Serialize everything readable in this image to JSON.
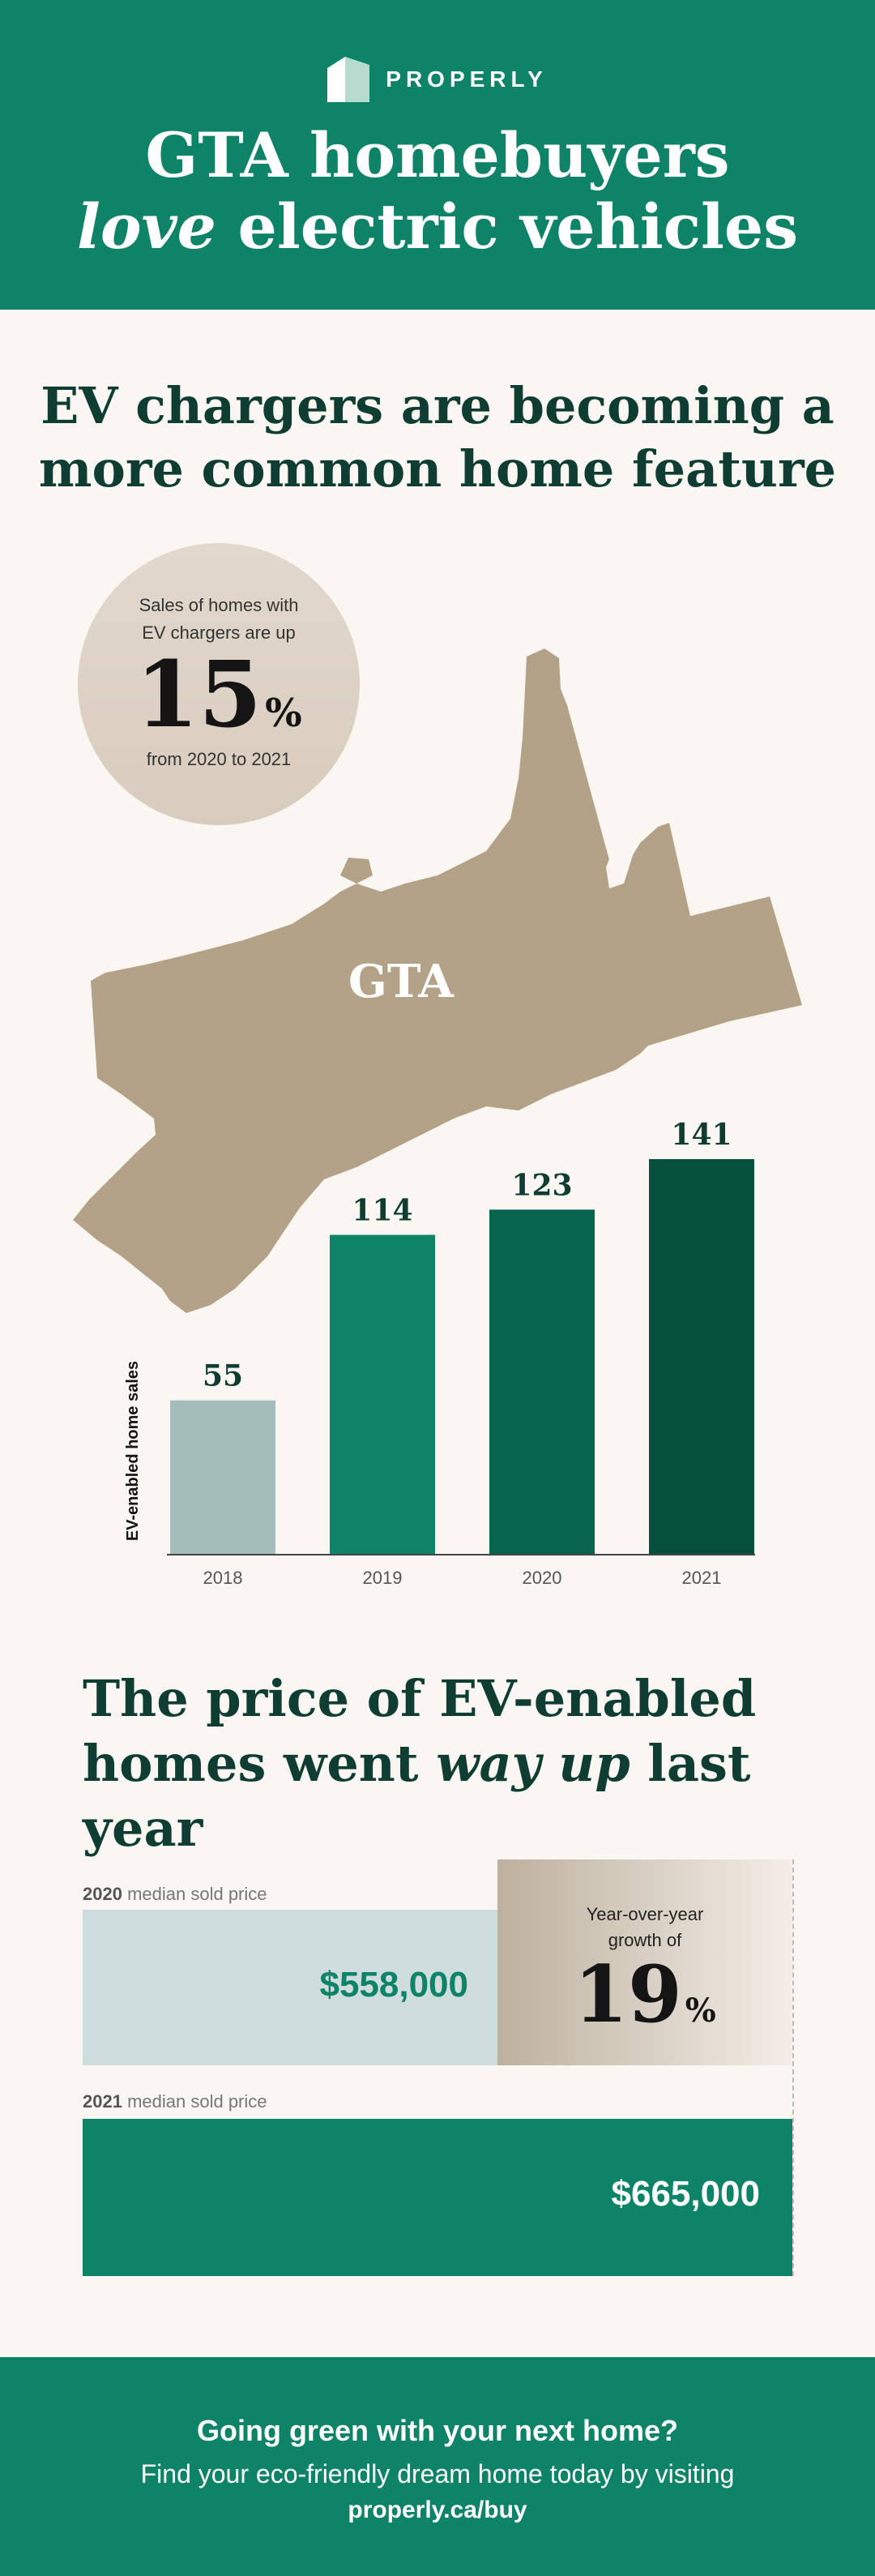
{
  "brand": {
    "name": "PROPERLY",
    "logo_icon": "house-icon"
  },
  "header": {
    "title_line1": "GTA homebuyers",
    "title_love": "love",
    "title_rest": "electric vehicles"
  },
  "section1": {
    "title_line1": "EV chargers are becoming a",
    "title_line2": "more common home feature",
    "map_label": "GTA",
    "stat": {
      "line1": "Sales of homes with",
      "line2": "EV chargers are up",
      "value": "15",
      "unit": "%",
      "line3": "from 2020 to 2021"
    }
  },
  "chart_data": {
    "type": "bar",
    "categories": [
      "2018",
      "2019",
      "2020",
      "2021"
    ],
    "values": [
      55,
      114,
      123,
      141
    ],
    "labels": [
      "55",
      "114",
      "123",
      "141"
    ],
    "ylabel": "EV-enabled home sales",
    "ylim": [
      0,
      141
    ],
    "colors": [
      "#a4bcba",
      "#0e8368",
      "#07654f",
      "#054f3d"
    ]
  },
  "section2": {
    "title_line1": "The price of EV-enabled",
    "title_line2_a": "homes went",
    "title_line2_em": "way up",
    "title_line2_b": "last year",
    "cap2020_year": "2020",
    "cap2020_text": "median sold price",
    "price2020": "$558,000",
    "cap2021_year": "2021",
    "cap2021_text": "median sold price",
    "price2021": "$665,000",
    "yoy_line1": "Year-over-year",
    "yoy_line2": "growth of",
    "yoy_value": "19",
    "yoy_unit": "%"
  },
  "footer": {
    "line1": "Going green with your next home?",
    "line2": "Find your eco-friendly dream home today by visiting",
    "link": "properly.ca/buy"
  }
}
